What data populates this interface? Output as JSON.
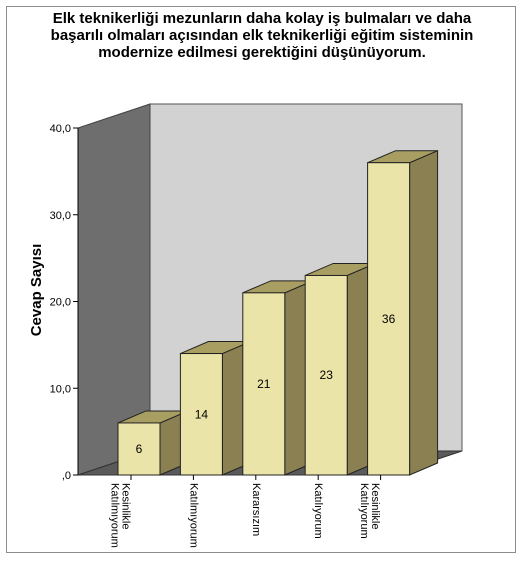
{
  "chart_data": {
    "type": "bar",
    "title": "Elk teknikerliği mezunların daha kolay iş bulmaları ve daha\nbaşarılı olmaları açısından elk teknikerliği eğitim sisteminin\nmodernize edilmesi gerektiğini düşünüyorum.",
    "ylabel": "Cevap Sayısı",
    "xlabel": "",
    "categories": [
      [
        "Kesinlikle",
        "Katılmıyorum"
      ],
      [
        "Katılmıyorum"
      ],
      [
        "Kararsızım"
      ],
      [
        "Katılıyorum"
      ],
      [
        "Kesinlikle",
        "Katılıyorum"
      ]
    ],
    "values": [
      6,
      14,
      21,
      23,
      36
    ],
    "data_labels": [
      "6",
      "14",
      "21",
      "23",
      "36"
    ],
    "yticks": [
      0,
      10,
      20,
      30,
      40
    ],
    "ytick_labels": [
      ",0",
      "10,0",
      "20,0",
      "30,0",
      "40,0"
    ],
    "ylim": [
      0,
      40
    ],
    "grid": false,
    "legend": "none",
    "style": "3d",
    "colors": {
      "bar_front": "#ebe4a8",
      "bar_top": "#a89e62",
      "bar_side": "#8a8052",
      "back_wall": "#d2d2d2",
      "left_wall": "#6e6e6e",
      "floor": "#5a5a5a"
    }
  }
}
